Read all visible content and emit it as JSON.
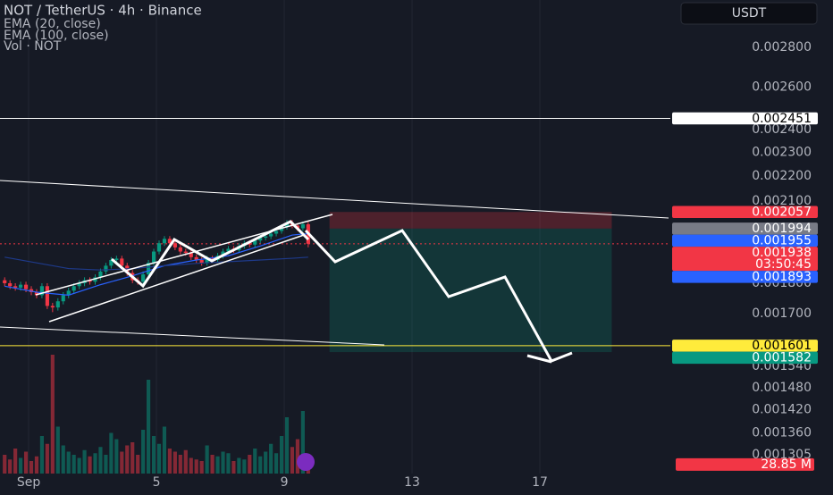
{
  "chart_data": {
    "type": "candlestick",
    "title": "NOT / TetherUS · 4h · Binance",
    "indicators": [
      "Vol · NOT"
    ],
    "currency": "USDT",
    "x": [
      -18,
      -14,
      -10,
      -6,
      -2,
      2,
      6,
      10,
      14,
      18,
      22,
      26,
      30,
      34,
      38,
      42,
      46,
      50,
      54,
      58,
      62,
      66,
      70,
      74,
      78,
      82,
      86,
      90,
      94,
      98,
      102,
      106,
      110,
      114,
      118,
      122,
      126,
      130,
      134,
      138,
      142,
      146,
      150,
      154,
      158,
      162,
      166,
      170,
      174,
      178,
      182,
      186,
      190,
      194,
      198,
      202,
      206,
      210
    ],
    "open": [
      0.00181,
      0.0018,
      0.00179,
      0.001785,
      0.001795,
      0.00178,
      0.00177,
      0.00176,
      0.00179,
      0.001725,
      0.00172,
      0.00174,
      0.00176,
      0.001775,
      0.00179,
      0.0018,
      0.00181,
      0.001805,
      0.00182,
      0.00184,
      0.00186,
      0.00188,
      0.001885,
      0.00186,
      0.001835,
      0.00181,
      0.001805,
      0.00183,
      0.00187,
      0.00191,
      0.00194,
      0.001956,
      0.00194,
      0.001925,
      0.00191,
      0.001905,
      0.00189,
      0.00188,
      0.00187,
      0.001885,
      0.00188,
      0.001895,
      0.00191,
      0.00192,
      0.001915,
      0.00193,
      0.00194,
      0.001935,
      0.00195,
      0.00196,
      0.001965,
      0.001975,
      0.001985,
      0.002,
      0.002016,
      0.002005,
      0.001995,
      0.00201
    ],
    "high": [
      0.00182,
      0.00181,
      0.0018,
      0.001805,
      0.001805,
      0.00179,
      0.00178,
      0.0018,
      0.0018,
      0.001735,
      0.00175,
      0.00177,
      0.001785,
      0.0018,
      0.00181,
      0.00182,
      0.00182,
      0.00183,
      0.00185,
      0.00187,
      0.00189,
      0.001895,
      0.001895,
      0.00187,
      0.001845,
      0.00182,
      0.00184,
      0.00188,
      0.00192,
      0.00195,
      0.001966,
      0.001966,
      0.00195,
      0.001935,
      0.00192,
      0.001915,
      0.0019,
      0.00189,
      0.001895,
      0.001895,
      0.001905,
      0.00192,
      0.00193,
      0.00193,
      0.00194,
      0.00195,
      0.00195,
      0.00196,
      0.00197,
      0.001975,
      0.001985,
      0.001995,
      0.00201,
      0.002026,
      0.002026,
      0.002015,
      0.00202,
      0.00202
    ],
    "low": [
      0.00179,
      0.00178,
      0.001775,
      0.001775,
      0.00177,
      0.00176,
      0.00175,
      0.00175,
      0.001715,
      0.001705,
      0.00171,
      0.00173,
      0.00175,
      0.001765,
      0.00178,
      0.00179,
      0.001795,
      0.001795,
      0.00181,
      0.00183,
      0.00185,
      0.00187,
      0.00185,
      0.001825,
      0.0018,
      0.001795,
      0.001795,
      0.00182,
      0.00186,
      0.0019,
      0.00193,
      0.00193,
      0.001915,
      0.0019,
      0.001895,
      0.00188,
      0.00187,
      0.00186,
      0.00186,
      0.00187,
      0.00187,
      0.001885,
      0.0019,
      0.001905,
      0.001905,
      0.00192,
      0.001925,
      0.001925,
      0.00194,
      0.00195,
      0.001955,
      0.001965,
      0.001975,
      0.00199,
      0.001995,
      0.001985,
      0.001985,
      0.001925
    ],
    "close": [
      0.0018,
      0.00179,
      0.001785,
      0.001795,
      0.00178,
      0.00177,
      0.00176,
      0.00179,
      0.001725,
      0.00172,
      0.00174,
      0.00176,
      0.001775,
      0.00179,
      0.0018,
      0.00181,
      0.001805,
      0.00182,
      0.00184,
      0.00186,
      0.00188,
      0.001885,
      0.00186,
      0.001835,
      0.00181,
      0.001805,
      0.00183,
      0.00187,
      0.00191,
      0.00194,
      0.001956,
      0.00194,
      0.001925,
      0.00191,
      0.001905,
      0.00189,
      0.00188,
      0.00187,
      0.001885,
      0.00188,
      0.001895,
      0.00191,
      0.00192,
      0.001915,
      0.00193,
      0.00194,
      0.001935,
      0.00195,
      0.00196,
      0.001965,
      0.001975,
      0.001985,
      0.002,
      0.002016,
      0.002005,
      0.001995,
      0.00201,
      0.001938
    ],
    "volume": [
      60,
      45,
      80,
      50,
      70,
      40,
      55,
      120,
      95,
      380,
      150,
      90,
      70,
      60,
      50,
      75,
      55,
      65,
      85,
      60,
      130,
      110,
      70,
      90,
      100,
      60,
      140,
      300,
      120,
      95,
      150,
      80,
      70,
      60,
      75,
      50,
      45,
      40,
      90,
      60,
      55,
      70,
      65,
      40,
      50,
      45,
      60,
      80,
      55,
      70,
      95,
      65,
      120,
      180,
      85,
      110,
      200,
      28.85
    ],
    "up_color": "#089981",
    "down_color": "#f23645",
    "ema": [
      {
        "name": "EMA (20, close)",
        "color": "#2962ff",
        "x": [
          -18,
          6,
          30,
          54,
          78,
          102,
          126,
          150,
          174,
          198,
          210
        ],
        "values": [
          0.00179,
          0.00177,
          0.00176,
          0.001795,
          0.001825,
          0.00186,
          0.00188,
          0.001895,
          0.00193,
          0.00197,
          0.001975
        ]
      },
      {
        "name": "EMA (100, close)",
        "color": "#1e3a8a",
        "x": [
          -18,
          6,
          30,
          54,
          78,
          102,
          126,
          150,
          174,
          198,
          210
        ],
        "values": [
          0.00189,
          0.00187,
          0.00185,
          0.001845,
          0.00185,
          0.00186,
          0.001868,
          0.001874,
          0.00188,
          0.001886,
          0.00189
        ]
      }
    ],
    "xlim": [
      -21.5,
      482
    ],
    "xticks": [
      {
        "value": 0,
        "label": "Sep"
      },
      {
        "value": 96,
        "label": "5"
      },
      {
        "value": 192,
        "label": "9"
      },
      {
        "value": 288,
        "label": "13"
      },
      {
        "value": 384,
        "label": "17"
      }
    ],
    "ylim": [
      0.00126,
      0.00306
    ],
    "log_scale": true,
    "yticks": [
      {
        "value": 0.0028,
        "label": "0.002800"
      },
      {
        "value": 0.0026,
        "label": "0.002600"
      },
      {
        "value": 0.0024,
        "label": "0.002400"
      },
      {
        "value": 0.0023,
        "label": "0.002300"
      },
      {
        "value": 0.0022,
        "label": "0.002200"
      },
      {
        "value": 0.0021,
        "label": "0.002100"
      },
      {
        "value": 0.0018,
        "label": "0.001800"
      },
      {
        "value": 0.0017,
        "label": "0.001700"
      },
      {
        "value": 0.00154,
        "label": "0.001540"
      },
      {
        "value": 0.00148,
        "label": "0.001480"
      },
      {
        "value": 0.00142,
        "label": "0.001420"
      },
      {
        "value": 0.00136,
        "label": "0.001360"
      },
      {
        "value": 0.001305,
        "label": "0.001305"
      }
    ],
    "y2lim": [
      0,
      400
    ],
    "xgrid": true,
    "price_tags": [
      {
        "value": 0.002451,
        "color": "#ffffff",
        "text_color": "#000000"
      },
      {
        "value": 0.002057,
        "color": "#f23645",
        "text_color": "#ffffff"
      },
      {
        "value": 0.001994,
        "color": "#787b86",
        "text_color": "#ffffff"
      },
      {
        "value": 0.001955,
        "color": "#2962ff",
        "text_color": "#ffffff"
      },
      {
        "value": 0.001938,
        "color": "#f23645",
        "text_color": "#ffffff",
        "countdown": "03:50:45"
      },
      {
        "value": 0.001893,
        "color": "#2962ff",
        "text_color": "#ffffff"
      },
      {
        "value": 0.001601,
        "color": "#ffeb3b",
        "text_color": "#000000"
      },
      {
        "value": 0.001582,
        "color": "#089981",
        "text_color": "#ffffff"
      }
    ],
    "volume_tag": {
      "value": 28.85,
      "label": "28.85 M",
      "color": "#f23645"
    },
    "position_x": [
      226,
      438
    ]
  }
}
